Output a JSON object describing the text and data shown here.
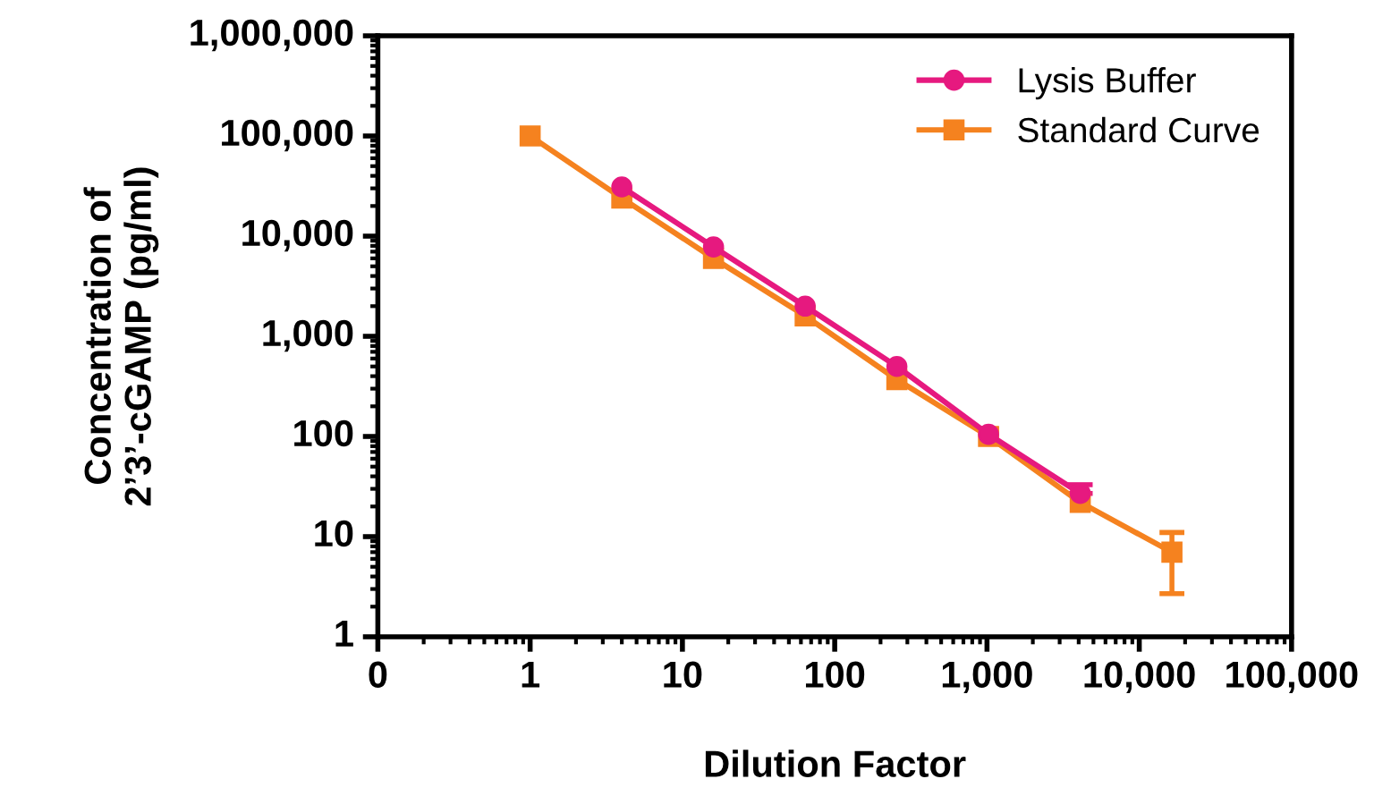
{
  "chart_data": {
    "type": "line",
    "xlabel": "Dilution Factor",
    "ylabel": "Concentration of\n2’3’-cGAMP (pg/ml)",
    "log": "xy",
    "xlim": [
      0.1,
      100000
    ],
    "xticks": [
      {
        "value": 0.1,
        "label": "0"
      },
      {
        "value": 1,
        "label": "1"
      },
      {
        "value": 10,
        "label": "10"
      },
      {
        "value": 100,
        "label": "100"
      },
      {
        "value": 1000,
        "label": "1,000"
      },
      {
        "value": 10000,
        "label": "10,000"
      },
      {
        "value": 100000,
        "label": "100,000"
      }
    ],
    "ylim": [
      1,
      1000000
    ],
    "yticks": [
      {
        "value": 1,
        "label": "1"
      },
      {
        "value": 10,
        "label": "10"
      },
      {
        "value": 100,
        "label": "100"
      },
      {
        "value": 1000,
        "label": "1,000"
      },
      {
        "value": 10000,
        "label": "10,000"
      },
      {
        "value": 100000,
        "label": "100,000"
      },
      {
        "value": 1000000,
        "label": "1,000,000"
      }
    ],
    "grid": false,
    "legend": "top right",
    "series": [
      {
        "name": "Lysis Buffer",
        "color": "#e6197f",
        "marker": "circle",
        "x": [
          4,
          16,
          64,
          256,
          1024,
          4096
        ],
        "values": [
          31000,
          7800,
          2000,
          500,
          105,
          27
        ],
        "errors": [
          null,
          null,
          null,
          null,
          null,
          [
            27,
            33
          ]
        ]
      },
      {
        "name": "Standard Curve",
        "color": "#f5821f",
        "marker": "square",
        "x": [
          1,
          4,
          16,
          64,
          256,
          1024,
          4096,
          16384
        ],
        "values": [
          100000,
          24000,
          6000,
          1600,
          370,
          100,
          22,
          7
        ],
        "errors": [
          null,
          null,
          null,
          null,
          null,
          null,
          null,
          [
            2.7,
            11
          ]
        ]
      }
    ]
  }
}
